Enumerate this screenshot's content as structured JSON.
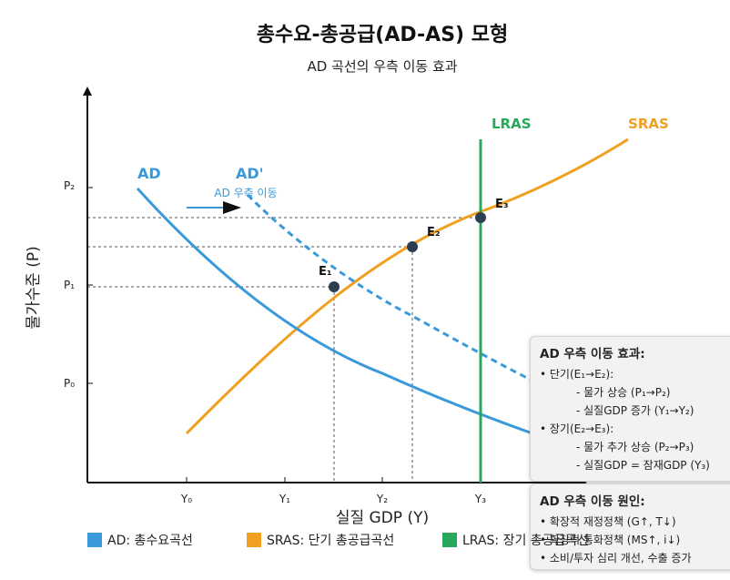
{
  "header": {
    "title": "총수요-총공급(AD-AS) 모형",
    "subtitle": "AD 곡선의 우측 이동 효과"
  },
  "axes": {
    "x_label": "실질 GDP (Y)",
    "y_label": "물가수준 (P)",
    "x_ticks": [
      "Y₀",
      "Y₁",
      "Y₂",
      "Y₃"
    ],
    "y_ticks": [
      "P₀",
      "P₁",
      "P₂"
    ]
  },
  "curves": {
    "ad_label": "AD",
    "ad_shifted_label": "AD'",
    "sras_label": "SRAS",
    "lras_label": "LRAS",
    "shift_label": "AD 우측 이동"
  },
  "points": [
    "E₁",
    "E₂",
    "E₃"
  ],
  "colors": {
    "ad": "#3a9ad9",
    "sras": "#f0a020",
    "lras": "#27a85a",
    "point": "#2c3e50",
    "guide": "#555555"
  },
  "effect_box": {
    "title": "AD 우측 이동 효과:",
    "lines": [
      "• 단기(E₁→E₂):",
      "- 물가 상승 (P₁→P₂)",
      "- 실질GDP 증가 (Y₁→Y₂)",
      "• 장기(E₂→E₃):",
      "- 물가 추가 상승 (P₂→P₃)",
      "- 실질GDP = 잠재GDP (Y₃)"
    ]
  },
  "cause_box": {
    "title": "AD 우측 이동 원인:",
    "lines": [
      "• 확장적 재정정책 (G↑, T↓)",
      "• 확장적 통화정책 (MS↑, i↓)",
      "• 소비/투자 심리 개선, 수출 증가"
    ]
  },
  "legend": {
    "items": [
      {
        "label": "AD: 총수요곡선",
        "color": "#3a9ad9"
      },
      {
        "label": "SRAS: 단기 총공급곡선",
        "color": "#f0a020"
      },
      {
        "label": "LRAS: 장기 총공급곡선",
        "color": "#27a85a"
      }
    ]
  }
}
